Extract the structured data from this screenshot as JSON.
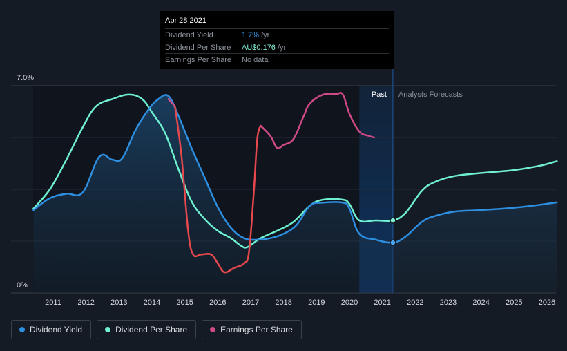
{
  "tooltip": {
    "date": "Apr 28 2021",
    "rows": [
      {
        "label": "Dividend Yield",
        "value": "1.7%",
        "unit": "/yr"
      },
      {
        "label": "Dividend Per Share",
        "value": "AU$0.176",
        "unit": "/yr"
      },
      {
        "label": "Earnings Per Share",
        "value": "No data",
        "unit": ""
      }
    ]
  },
  "legend": [
    {
      "label": "Dividend Yield",
      "color": "#2e8ee0"
    },
    {
      "label": "Dividend Per Share",
      "color": "#6ff0d0"
    },
    {
      "label": "Earnings Per Share",
      "color": "#cf4a86"
    }
  ],
  "chart_data": {
    "type": "line",
    "y_top_label": "7.0%",
    "y_bottom_label": "0%",
    "ylim": [
      0,
      7.0
    ],
    "xlim": [
      2010.4,
      2026.3
    ],
    "x_ticks": [
      "2011",
      "2012",
      "2013",
      "2014",
      "2015",
      "2016",
      "2017",
      "2018",
      "2019",
      "2020",
      "2021",
      "2022",
      "2023",
      "2024",
      "2025",
      "2026"
    ],
    "past_label": "Past",
    "forecast_label": "Analysts Forecasts",
    "past_forecast_boundary": 2021.32,
    "past_shade_start": 2020.3,
    "series": [
      {
        "name": "Dividend Yield",
        "color": "#2e8ee0",
        "unit": "%",
        "points": [
          [
            2010.4,
            2.8
          ],
          [
            2010.9,
            3.2
          ],
          [
            2011.4,
            3.35
          ],
          [
            2011.9,
            3.4
          ],
          [
            2012.4,
            4.6
          ],
          [
            2012.8,
            4.5
          ],
          [
            2013.1,
            4.55
          ],
          [
            2013.5,
            5.5
          ],
          [
            2013.9,
            6.2
          ],
          [
            2014.2,
            6.55
          ],
          [
            2014.5,
            6.65
          ],
          [
            2014.8,
            6.0
          ],
          [
            2015.2,
            4.9
          ],
          [
            2015.6,
            3.9
          ],
          [
            2016.0,
            2.9
          ],
          [
            2016.4,
            2.2
          ],
          [
            2016.8,
            1.85
          ],
          [
            2017.2,
            1.8
          ],
          [
            2017.6,
            1.85
          ],
          [
            2018.0,
            2.0
          ],
          [
            2018.4,
            2.3
          ],
          [
            2018.8,
            2.95
          ],
          [
            2019.2,
            3.05
          ],
          [
            2019.8,
            3.05
          ],
          [
            2020.0,
            2.85
          ],
          [
            2020.3,
            2.0
          ],
          [
            2020.8,
            1.8
          ],
          [
            2021.32,
            1.7
          ],
          [
            2021.7,
            1.9
          ],
          [
            2022.2,
            2.4
          ],
          [
            2022.6,
            2.6
          ],
          [
            2023.2,
            2.75
          ],
          [
            2024.0,
            2.8
          ],
          [
            2025.0,
            2.88
          ],
          [
            2025.8,
            2.98
          ],
          [
            2026.3,
            3.06
          ]
        ]
      },
      {
        "name": "Dividend Per Share",
        "color": "#6ff0d0",
        "points": [
          [
            2010.4,
            2.85
          ],
          [
            2010.9,
            3.5
          ],
          [
            2011.4,
            4.5
          ],
          [
            2011.9,
            5.6
          ],
          [
            2012.3,
            6.3
          ],
          [
            2012.8,
            6.55
          ],
          [
            2013.3,
            6.7
          ],
          [
            2013.7,
            6.55
          ],
          [
            2014.0,
            6.1
          ],
          [
            2014.4,
            5.4
          ],
          [
            2014.8,
            4.2
          ],
          [
            2015.2,
            3.1
          ],
          [
            2015.6,
            2.5
          ],
          [
            2016.0,
            2.1
          ],
          [
            2016.4,
            1.85
          ],
          [
            2016.7,
            1.6
          ],
          [
            2016.9,
            1.55
          ],
          [
            2017.3,
            1.85
          ],
          [
            2017.8,
            2.1
          ],
          [
            2018.3,
            2.4
          ],
          [
            2018.8,
            2.95
          ],
          [
            2019.2,
            3.15
          ],
          [
            2019.8,
            3.15
          ],
          [
            2020.0,
            3.0
          ],
          [
            2020.3,
            2.45
          ],
          [
            2020.8,
            2.45
          ],
          [
            2021.32,
            2.45
          ],
          [
            2021.7,
            2.7
          ],
          [
            2022.2,
            3.45
          ],
          [
            2022.6,
            3.75
          ],
          [
            2023.2,
            3.95
          ],
          [
            2024.0,
            4.05
          ],
          [
            2025.0,
            4.15
          ],
          [
            2025.8,
            4.3
          ],
          [
            2026.3,
            4.45
          ]
        ]
      },
      {
        "name": "Earnings Per Share",
        "color": "#cf4a86",
        "points": [
          [
            2014.5,
            6.55
          ],
          [
            2014.7,
            6.3
          ],
          [
            2014.9,
            4.6
          ],
          [
            2015.1,
            2.1
          ],
          [
            2015.25,
            1.3
          ],
          [
            2015.5,
            1.3
          ],
          [
            2015.8,
            1.3
          ],
          [
            2016.0,
            1.0
          ],
          [
            2016.2,
            0.7
          ],
          [
            2016.5,
            0.85
          ],
          [
            2016.8,
            1.0
          ],
          [
            2016.95,
            1.4
          ],
          [
            2017.1,
            3.5
          ],
          [
            2017.2,
            5.2
          ],
          [
            2017.3,
            5.65
          ],
          [
            2017.6,
            5.3
          ],
          [
            2017.8,
            4.9
          ],
          [
            2018.0,
            5.0
          ],
          [
            2018.3,
            5.2
          ],
          [
            2018.6,
            5.95
          ],
          [
            2018.8,
            6.4
          ],
          [
            2019.2,
            6.7
          ],
          [
            2019.6,
            6.72
          ],
          [
            2019.8,
            6.7
          ],
          [
            2020.0,
            6.05
          ],
          [
            2020.3,
            5.45
          ],
          [
            2020.6,
            5.3
          ],
          [
            2020.75,
            5.25
          ]
        ]
      }
    ]
  }
}
